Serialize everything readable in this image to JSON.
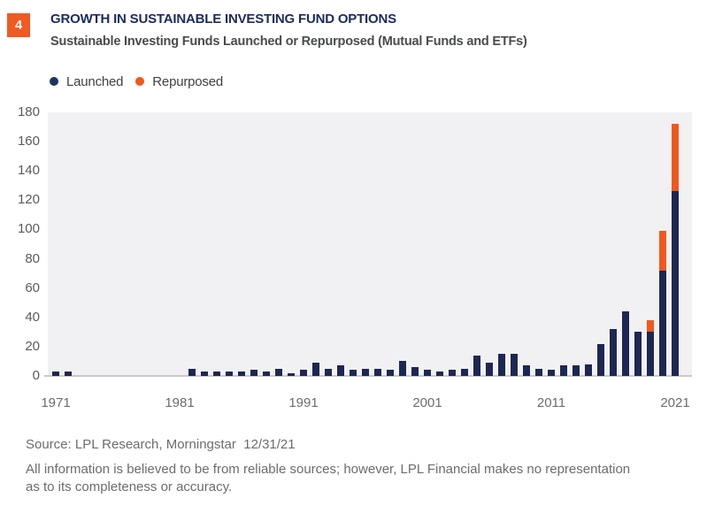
{
  "figure": {
    "number": "4",
    "badge_color": "#F15A22"
  },
  "header": {
    "title": "GROWTH IN SUSTAINABLE INVESTING FUND OPTIONS",
    "subtitle": "Sustainable Investing Funds Launched or Repurposed (Mutual Funds and ETFs)"
  },
  "legend": [
    {
      "label": "Launched",
      "color": "#1E3461"
    },
    {
      "label": "Repurposed",
      "color": "#F2571E"
    }
  ],
  "chart_data": {
    "type": "bar",
    "stacked": true,
    "series_names": [
      "Launched",
      "Repurposed"
    ],
    "title": "Sustainable Investing Funds Launched or Repurposed (Mutual Funds and ETFs)",
    "xlabel": "",
    "ylabel": "",
    "ylim": [
      0,
      180
    ],
    "y_ticks": [
      0,
      20,
      40,
      60,
      80,
      100,
      120,
      140,
      160,
      180
    ],
    "x_tick_labels": [
      "1971",
      "1981",
      "1991",
      "2001",
      "2011",
      "2021"
    ],
    "grid": false,
    "legend_position": "top-left",
    "plot_background": "#F1F1F3",
    "colors": {
      "launched": "#1D2752",
      "repurposed": "#F2571E"
    },
    "years": [
      {
        "year": 1971,
        "launched": 3,
        "repurposed": 0
      },
      {
        "year": 1972,
        "launched": 3,
        "repurposed": 0
      },
      {
        "year": 1973,
        "launched": 0,
        "repurposed": 0
      },
      {
        "year": 1974,
        "launched": 0,
        "repurposed": 0
      },
      {
        "year": 1975,
        "launched": 0,
        "repurposed": 0
      },
      {
        "year": 1976,
        "launched": 0,
        "repurposed": 0
      },
      {
        "year": 1977,
        "launched": 0,
        "repurposed": 0
      },
      {
        "year": 1978,
        "launched": 0,
        "repurposed": 0
      },
      {
        "year": 1979,
        "launched": 0,
        "repurposed": 0
      },
      {
        "year": 1980,
        "launched": 0,
        "repurposed": 0
      },
      {
        "year": 1981,
        "launched": 0,
        "repurposed": 0
      },
      {
        "year": 1982,
        "launched": 5,
        "repurposed": 0
      },
      {
        "year": 1983,
        "launched": 3,
        "repurposed": 0
      },
      {
        "year": 1984,
        "launched": 3,
        "repurposed": 0
      },
      {
        "year": 1985,
        "launched": 3,
        "repurposed": 0
      },
      {
        "year": 1986,
        "launched": 3,
        "repurposed": 0
      },
      {
        "year": 1987,
        "launched": 4,
        "repurposed": 0
      },
      {
        "year": 1988,
        "launched": 3,
        "repurposed": 0
      },
      {
        "year": 1989,
        "launched": 5,
        "repurposed": 0
      },
      {
        "year": 1990,
        "launched": 2,
        "repurposed": 0
      },
      {
        "year": 1991,
        "launched": 4,
        "repurposed": 0
      },
      {
        "year": 1992,
        "launched": 9,
        "repurposed": 0
      },
      {
        "year": 1993,
        "launched": 5,
        "repurposed": 0
      },
      {
        "year": 1994,
        "launched": 7,
        "repurposed": 0
      },
      {
        "year": 1995,
        "launched": 4,
        "repurposed": 0
      },
      {
        "year": 1996,
        "launched": 5,
        "repurposed": 0
      },
      {
        "year": 1997,
        "launched": 5,
        "repurposed": 0
      },
      {
        "year": 1998,
        "launched": 4,
        "repurposed": 0
      },
      {
        "year": 1999,
        "launched": 10,
        "repurposed": 0
      },
      {
        "year": 2000,
        "launched": 6,
        "repurposed": 0
      },
      {
        "year": 2001,
        "launched": 4,
        "repurposed": 0
      },
      {
        "year": 2002,
        "launched": 3,
        "repurposed": 0
      },
      {
        "year": 2003,
        "launched": 4,
        "repurposed": 0
      },
      {
        "year": 2004,
        "launched": 5,
        "repurposed": 0
      },
      {
        "year": 2005,
        "launched": 14,
        "repurposed": 0
      },
      {
        "year": 2006,
        "launched": 9,
        "repurposed": 0
      },
      {
        "year": 2007,
        "launched": 15,
        "repurposed": 0
      },
      {
        "year": 2008,
        "launched": 15,
        "repurposed": 0
      },
      {
        "year": 2009,
        "launched": 7,
        "repurposed": 0
      },
      {
        "year": 2010,
        "launched": 5,
        "repurposed": 0
      },
      {
        "year": 2011,
        "launched": 4,
        "repurposed": 0
      },
      {
        "year": 2012,
        "launched": 7,
        "repurposed": 0
      },
      {
        "year": 2013,
        "launched": 7,
        "repurposed": 0
      },
      {
        "year": 2014,
        "launched": 8,
        "repurposed": 0
      },
      {
        "year": 2015,
        "launched": 22,
        "repurposed": 0
      },
      {
        "year": 2016,
        "launched": 32,
        "repurposed": 0
      },
      {
        "year": 2017,
        "launched": 44,
        "repurposed": 0
      },
      {
        "year": 2018,
        "launched": 30,
        "repurposed": 0
      },
      {
        "year": 2019,
        "launched": 30,
        "repurposed": 8
      },
      {
        "year": 2020,
        "launched": 72,
        "repurposed": 27
      },
      {
        "year": 2021,
        "launched": 126,
        "repurposed": 46
      }
    ]
  },
  "footer": {
    "source": "Source: LPL Research, Morningstar  12/31/21",
    "disclaimer_line1": "All information is believed to be from reliable sources; however, LPL Financial makes no representation",
    "disclaimer_line2": "as to its completeness or accuracy."
  }
}
